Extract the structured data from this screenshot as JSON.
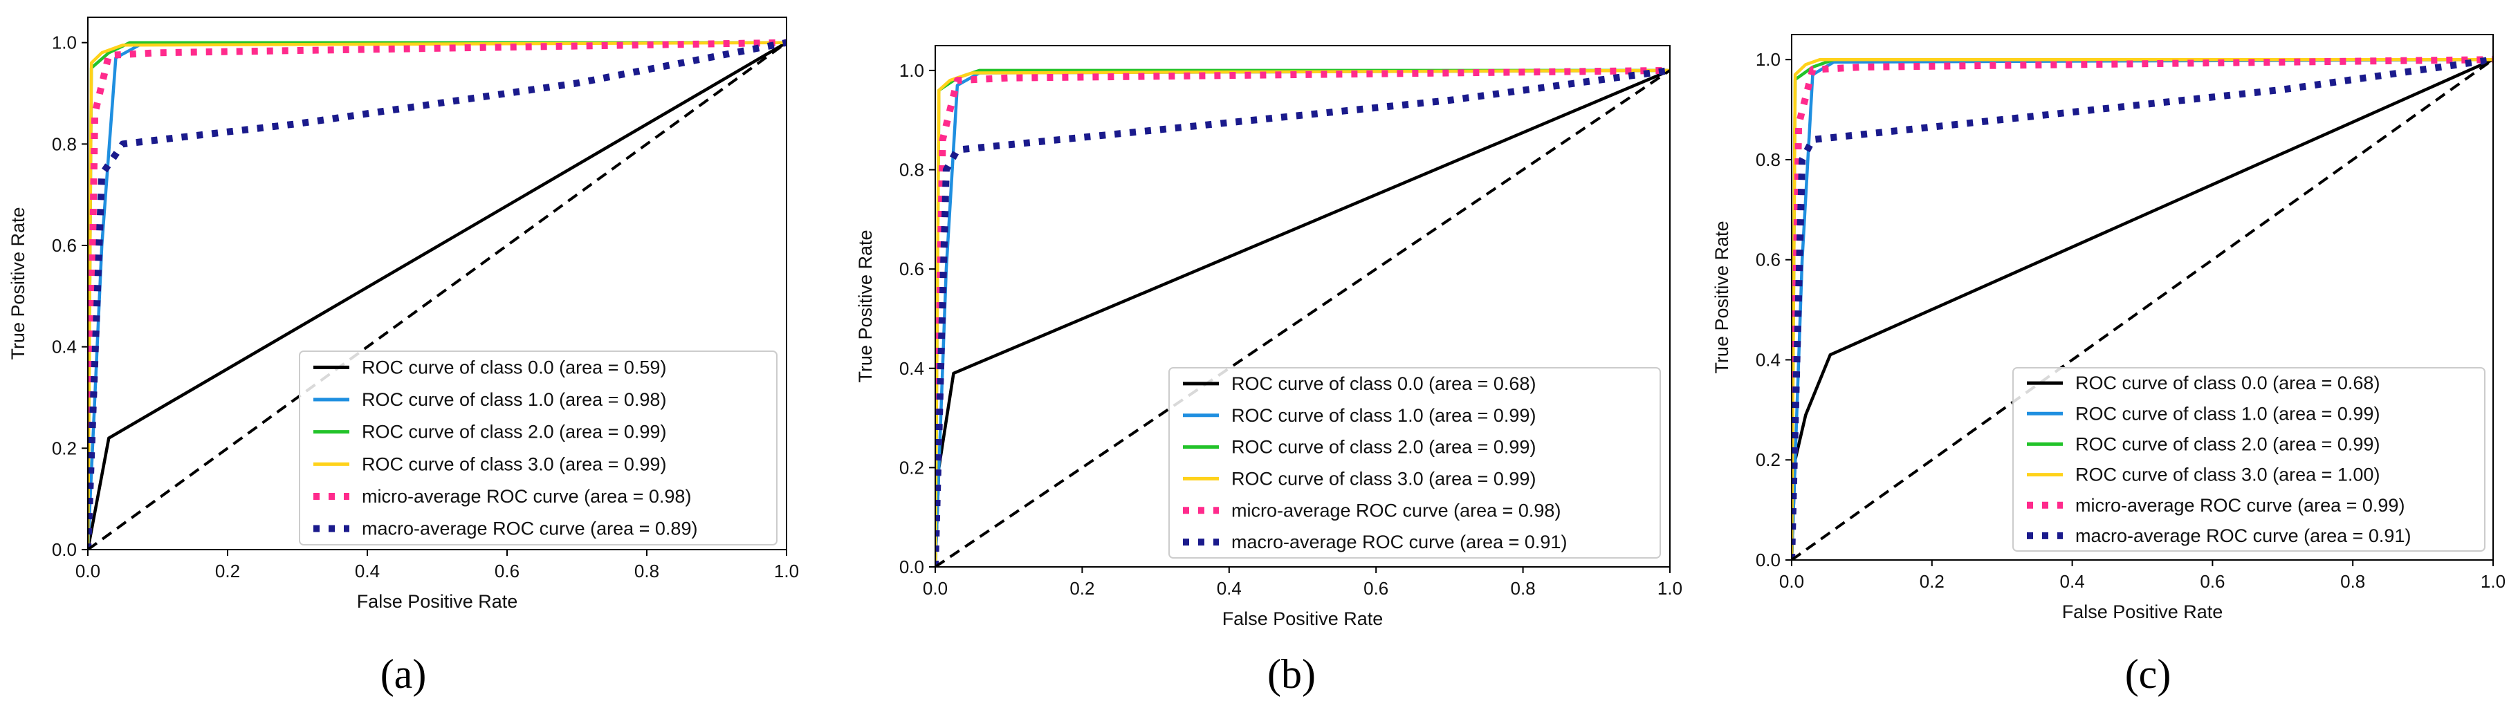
{
  "figure": {
    "colors": {
      "class0": "#000000",
      "class1": "#1f8fe0",
      "class2": "#22c32a",
      "class3": "#ffd21a",
      "micro": "#ff2a8c",
      "macro": "#1a1a8c",
      "chance": "#000000"
    }
  },
  "chart_data": [
    {
      "type": "line",
      "caption": "(a)",
      "xlabel": "False Positive Rate",
      "ylabel": "True Positive Rate",
      "xlim": [
        0,
        1
      ],
      "ylim": [
        0,
        1.05
      ],
      "xticks": [
        "0.0",
        "0.2",
        "0.4",
        "0.6",
        "0.8",
        "1.0"
      ],
      "yticks": [
        "0.0",
        "0.2",
        "0.4",
        "0.6",
        "0.8",
        "1.0"
      ],
      "legend_position": "lower-right",
      "series": [
        {
          "name": "ROC curve of class 0.0 (area = 0.59)",
          "key": "class0",
          "style": "solid",
          "x": [
            0,
            0.03,
            1.0
          ],
          "y": [
            0,
            0.22,
            1.0
          ]
        },
        {
          "name": "ROC curve of class 1.0 (area = 0.98)",
          "key": "class1",
          "style": "solid",
          "x": [
            0,
            0.02,
            0.04,
            0.08,
            1.0
          ],
          "y": [
            0,
            0.6,
            0.97,
            1.0,
            1.0
          ]
        },
        {
          "name": "ROC curve of class 2.0 (area = 0.99)",
          "key": "class2",
          "style": "solid",
          "x": [
            0,
            0.005,
            0.03,
            0.06,
            1.0
          ],
          "y": [
            0,
            0.95,
            0.98,
            1.0,
            1.0
          ]
        },
        {
          "name": "ROC curve of class 3.0 (area = 0.99)",
          "key": "class3",
          "style": "solid",
          "x": [
            0,
            0.005,
            0.02,
            0.05,
            1.0
          ],
          "y": [
            0,
            0.96,
            0.98,
            0.995,
            1.0
          ]
        },
        {
          "name": "micro-average ROC curve (area = 0.98)",
          "key": "micro",
          "style": "dotted",
          "x": [
            0,
            0.01,
            0.03,
            0.1,
            1.0
          ],
          "y": [
            0,
            0.86,
            0.975,
            0.98,
            1.0
          ]
        },
        {
          "name": "macro-average ROC curve (area = 0.89)",
          "key": "macro",
          "style": "dotted",
          "x": [
            0,
            0.02,
            0.05,
            0.3,
            0.7,
            1.0
          ],
          "y": [
            0,
            0.74,
            0.8,
            0.84,
            0.92,
            1.0
          ]
        },
        {
          "name": "",
          "key": "chance",
          "style": "dashed",
          "x": [
            0,
            1
          ],
          "y": [
            0,
            1
          ]
        }
      ]
    },
    {
      "type": "line",
      "caption": "(b)",
      "xlabel": "False Positive Rate",
      "ylabel": "True Positive Rate",
      "xlim": [
        0,
        1
      ],
      "ylim": [
        0,
        1.05
      ],
      "xticks": [
        "0.0",
        "0.2",
        "0.4",
        "0.6",
        "0.8",
        "1.0"
      ],
      "yticks": [
        "0.0",
        "0.2",
        "0.4",
        "0.6",
        "0.8",
        "1.0"
      ],
      "legend_position": "lower-right",
      "series": [
        {
          "name": "ROC curve of class 0.0 (area = 0.68)",
          "key": "class0",
          "style": "solid",
          "x": [
            0,
            0.005,
            0.025,
            1.0
          ],
          "y": [
            0,
            0.2,
            0.39,
            1.0
          ]
        },
        {
          "name": "ROC curve of class 1.0 (area = 0.99)",
          "key": "class1",
          "style": "solid",
          "x": [
            0,
            0.015,
            0.03,
            0.06,
            1.0
          ],
          "y": [
            0,
            0.6,
            0.97,
            0.995,
            1.0
          ]
        },
        {
          "name": "ROC curve of class 2.0 (area = 0.99)",
          "key": "class2",
          "style": "solid",
          "x": [
            0,
            0.005,
            0.03,
            0.06,
            1.0
          ],
          "y": [
            0,
            0.96,
            0.985,
            1.0,
            1.0
          ]
        },
        {
          "name": "ROC curve of class 3.0 (area = 0.99)",
          "key": "class3",
          "style": "solid",
          "x": [
            0,
            0.005,
            0.02,
            0.05,
            1.0
          ],
          "y": [
            0,
            0.96,
            0.98,
            0.995,
            1.0
          ]
        },
        {
          "name": "micro-average ROC curve (area = 0.98)",
          "key": "micro",
          "style": "dotted",
          "x": [
            0,
            0.01,
            0.03,
            0.1,
            1.0
          ],
          "y": [
            0,
            0.86,
            0.98,
            0.985,
            1.0
          ]
        },
        {
          "name": "macro-average ROC curve (area = 0.91)",
          "key": "macro",
          "style": "dotted",
          "x": [
            0,
            0.015,
            0.03,
            0.3,
            0.7,
            1.0
          ],
          "y": [
            0,
            0.8,
            0.84,
            0.88,
            0.94,
            1.0
          ]
        },
        {
          "name": "",
          "key": "chance",
          "style": "dashed",
          "x": [
            0,
            1
          ],
          "y": [
            0,
            1
          ]
        }
      ]
    },
    {
      "type": "line",
      "caption": "(c)",
      "xlabel": "False Positive Rate",
      "ylabel": "True Positive Rate",
      "xlim": [
        0,
        1
      ],
      "ylim": [
        0,
        1.05
      ],
      "xticks": [
        "0.0",
        "0.2",
        "0.4",
        "0.6",
        "0.8",
        "1.0"
      ],
      "yticks": [
        "0.0",
        "0.2",
        "0.4",
        "0.6",
        "0.8",
        "1.0"
      ],
      "legend_position": "lower-right",
      "series": [
        {
          "name": "ROC curve of class 0.0 (area = 0.68)",
          "key": "class0",
          "style": "solid",
          "x": [
            0,
            0.005,
            0.02,
            0.055,
            1.0
          ],
          "y": [
            0,
            0.2,
            0.29,
            0.41,
            1.0
          ]
        },
        {
          "name": "ROC curve of class 1.0 (area = 0.99)",
          "key": "class1",
          "style": "solid",
          "x": [
            0,
            0.015,
            0.03,
            0.06,
            1.0
          ],
          "y": [
            0,
            0.6,
            0.97,
            0.995,
            1.0
          ]
        },
        {
          "name": "ROC curve of class 2.0 (area = 0.99)",
          "key": "class2",
          "style": "solid",
          "x": [
            0,
            0.005,
            0.03,
            0.06,
            1.0
          ],
          "y": [
            0,
            0.96,
            0.985,
            1.0,
            1.0
          ]
        },
        {
          "name": "ROC curve of class 3.0 (area = 1.00)",
          "key": "class3",
          "style": "solid",
          "x": [
            0,
            0.005,
            0.02,
            0.04,
            1.0
          ],
          "y": [
            0,
            0.97,
            0.99,
            1.0,
            1.0
          ]
        },
        {
          "name": "micro-average ROC curve (area = 0.99)",
          "key": "micro",
          "style": "dotted",
          "x": [
            0,
            0.01,
            0.03,
            0.1,
            1.0
          ],
          "y": [
            0,
            0.87,
            0.98,
            0.985,
            1.0
          ]
        },
        {
          "name": "macro-average ROC curve (area = 0.91)",
          "key": "macro",
          "style": "dotted",
          "x": [
            0,
            0.015,
            0.03,
            0.3,
            0.7,
            1.0
          ],
          "y": [
            0,
            0.8,
            0.84,
            0.88,
            0.94,
            1.0
          ]
        },
        {
          "name": "",
          "key": "chance",
          "style": "dashed",
          "x": [
            0,
            1
          ],
          "y": [
            0,
            1
          ]
        }
      ]
    }
  ]
}
